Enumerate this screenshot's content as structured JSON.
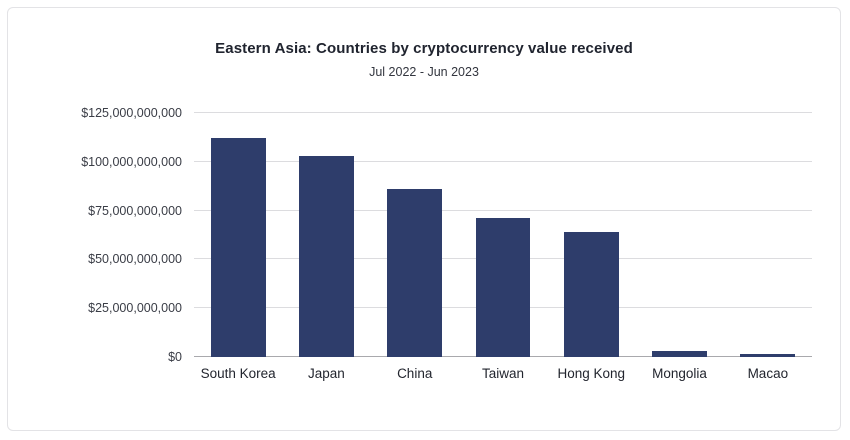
{
  "header": {
    "title": "Eastern Asia: Countries by cryptocurrency value received",
    "subtitle": "Jul 2022 - Jun 2023"
  },
  "colors": {
    "bar": "#2e3d6b",
    "gridline": "#dcdcdf",
    "baseline": "#a9a9ad",
    "title_text": "#20242f",
    "tick_text": "#3a3d46"
  },
  "chart_data": {
    "type": "bar",
    "title": "Eastern Asia: Countries by cryptocurrency value received",
    "subtitle": "Jul 2022 - Jun 2023",
    "categories": [
      "South Korea",
      "Japan",
      "China",
      "Taiwan",
      "Hong Kong",
      "Mongolia",
      "Macao"
    ],
    "values": [
      112000000000,
      103000000000,
      86000000000,
      71000000000,
      64000000000,
      3000000000,
      1500000000
    ],
    "xlabel": "",
    "ylabel": "",
    "ylim": [
      0,
      125000000000
    ],
    "grid": true,
    "legend": false,
    "yticks": [
      {
        "value": 0,
        "label": "$0"
      },
      {
        "value": 25000000000,
        "label": "$25,000,000,000"
      },
      {
        "value": 50000000000,
        "label": "$50,000,000,000"
      },
      {
        "value": 75000000000,
        "label": "$75,000,000,000"
      },
      {
        "value": 100000000000,
        "label": "$100,000,000,000"
      },
      {
        "value": 125000000000,
        "label": "$125,000,000,000"
      }
    ]
  }
}
